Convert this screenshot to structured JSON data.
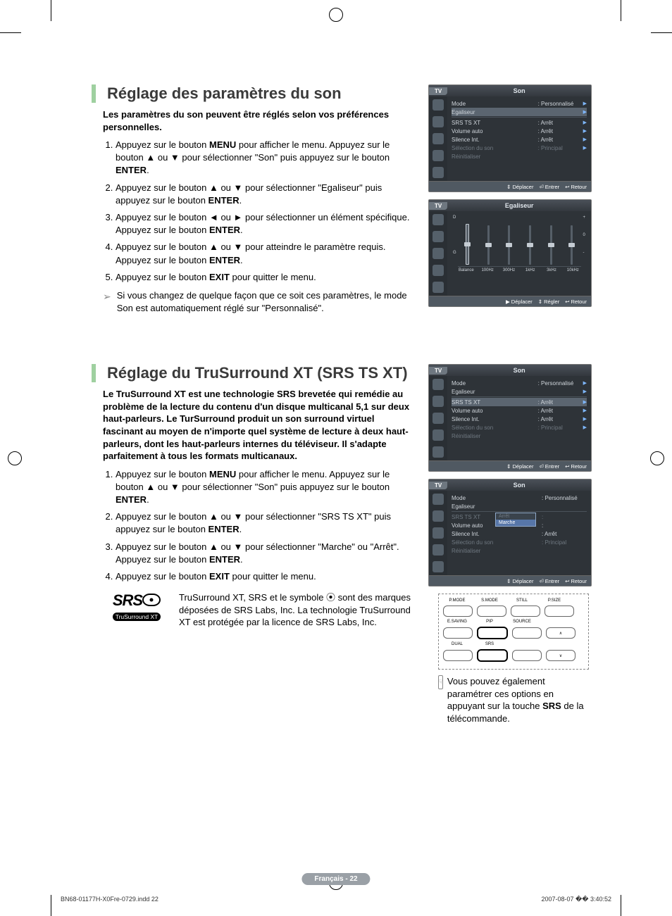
{
  "section1": {
    "title": "Réglage des paramètres du son",
    "intro": "Les paramètres du son peuvent être réglés selon vos préférences personnelles.",
    "steps": [
      "Appuyez sur le bouton <b>MENU</b> pour afficher le menu. Appuyez sur le bouton ▲ ou ▼ pour sélectionner \"Son\" puis appuyez sur le bouton <b>ENTER</b>.",
      "Appuyez sur le bouton ▲ ou ▼ pour sélectionner \"Egaliseur\" puis appuyez sur le bouton <b>ENTER</b>.",
      "Appuyez sur le bouton ◄ ou ► pour sélectionner un élément spécifique. Appuyez sur le bouton <b>ENTER</b>.",
      "Appuyez sur le bouton ▲ ou ▼ pour atteindre le paramètre requis. Appuyez sur le bouton <b>ENTER</b>.",
      "Appuyez sur le bouton <b>EXIT</b> pour quitter le menu."
    ],
    "note": "Si vous changez de quelque façon que ce soit ces paramètres, le mode Son est automatiquement réglé sur \"Personnalisé\"."
  },
  "section2": {
    "title": "Réglage du TruSurround XT (SRS TS XT)",
    "intro": "Le TruSurround XT est une technologie SRS brevetée qui remédie au problème de la lecture du contenu d'un disque multicanal 5,1 sur deux haut-parleurs. Le TurSurround produit un son surround virtuel fascinant au moyen de n'importe quel système de lecture à deux haut-parleurs, dont les haut-parleurs internes du téléviseur. Il s'adapte parfaitement à tous les formats multicanaux.",
    "steps": [
      "Appuyez sur le bouton <b>MENU</b> pour afficher le menu. Appuyez sur le bouton ▲ ou ▼ pour sélectionner \"Son\" puis appuyez sur le bouton <b>ENTER</b>.",
      "Appuyez sur le bouton ▲ ou ▼ pour sélectionner \"SRS TS XT\" puis appuyez sur le bouton <b>ENTER</b>.",
      "Appuyez sur le bouton ▲ ou ▼ pour sélectionner \"Marche\" ou \"Arrêt\". Appuyez sur le bouton <b>ENTER</b>.",
      "Appuyez sur le bouton <b>EXIT</b> pour quitter le menu."
    ],
    "srs_logo_main": "SRS",
    "srs_logo_sub": "TruSurround XT",
    "srs_text": "TruSurround XT, SRS et le symbole ⦿ sont des marques déposées de SRS Labs, Inc. La technologie TruSurround XT est protégée par la licence de SRS Labs, Inc.",
    "remote_note": "Vous pouvez également paramétrer ces options en appuyant sur la touche <b>SRS</b> de la télécommande."
  },
  "osd_common": {
    "tv_label": "TV",
    "foot_move": "Déplacer",
    "foot_enter": "Entrer",
    "foot_adjust": "Régler",
    "foot_return": "Retour"
  },
  "osd_son": {
    "title": "Son",
    "rows": [
      {
        "lbl": "Mode",
        "val": ": Personnalisé",
        "hl": false,
        "dim": false,
        "tri": true
      },
      {
        "lbl": "Egaliseur",
        "val": "",
        "hl": true,
        "dim": false,
        "tri": true
      },
      {
        "lbl": "SRS TS XT",
        "val": ": Arrêt",
        "hl": false,
        "dim": false,
        "tri": true,
        "hr_above": true
      },
      {
        "lbl": "Volume auto",
        "val": ": Arrêt",
        "hl": false,
        "dim": false,
        "tri": true
      },
      {
        "lbl": "Silence Int.",
        "val": ": Arrêt",
        "hl": false,
        "dim": false,
        "tri": true
      },
      {
        "lbl": "Sélection du son",
        "val": ": Principal",
        "hl": false,
        "dim": true,
        "tri": true
      },
      {
        "lbl": "Réinitialiser",
        "val": "",
        "hl": false,
        "dim": true,
        "tri": false
      }
    ]
  },
  "osd_eq": {
    "title": "Egaliseur",
    "side_top": "D",
    "side_bot": "G",
    "scale_top": "+",
    "scale_mid": "0",
    "scale_bot": "-",
    "bands": [
      "Balance",
      "100Hz",
      "300Hz",
      "1kHz",
      "3kHz",
      "10kHz"
    ],
    "handle_positions": [
      0.5,
      0.5,
      0.5,
      0.5,
      0.5,
      0.5
    ]
  },
  "osd_son2": {
    "title": "Son",
    "rows": [
      {
        "lbl": "Mode",
        "val": ": Personnalisé",
        "hl": false,
        "dim": false,
        "tri": true
      },
      {
        "lbl": "Egaliseur",
        "val": "",
        "hl": false,
        "dim": false,
        "tri": true
      },
      {
        "lbl": "SRS TS XT",
        "val": ": Arrêt",
        "hl": true,
        "dim": false,
        "tri": true,
        "hr_above": true
      },
      {
        "lbl": "Volume auto",
        "val": ": Arrêt",
        "hl": false,
        "dim": false,
        "tri": true
      },
      {
        "lbl": "Silence Int.",
        "val": ": Arrêt",
        "hl": false,
        "dim": false,
        "tri": true
      },
      {
        "lbl": "Sélection du son",
        "val": ": Principal",
        "hl": false,
        "dim": true,
        "tri": true
      },
      {
        "lbl": "Réinitialiser",
        "val": "",
        "hl": false,
        "dim": true,
        "tri": false
      }
    ]
  },
  "osd_son3": {
    "title": "Son",
    "dropdown": {
      "options": [
        "Arrêt",
        "Marche"
      ],
      "selected": 1
    },
    "rows": [
      {
        "lbl": "Mode",
        "val": ": Personnalisé",
        "hl": false,
        "dim": false,
        "tri": false
      },
      {
        "lbl": "Egaliseur",
        "val": "",
        "hl": false,
        "dim": false,
        "tri": false
      },
      {
        "lbl": "SRS TS XT",
        "val": ":",
        "hl": false,
        "dim": true,
        "tri": false,
        "hr_above": true,
        "dropdown": true
      },
      {
        "lbl": "Volume auto",
        "val": ":",
        "hl": false,
        "dim": false,
        "tri": false
      },
      {
        "lbl": "Silence Int.",
        "val": ": Arrêt",
        "hl": false,
        "dim": false,
        "tri": false
      },
      {
        "lbl": "Sélection du son",
        "val": ": Principal",
        "hl": false,
        "dim": true,
        "tri": false
      },
      {
        "lbl": "Réinitialiser",
        "val": "",
        "hl": false,
        "dim": true,
        "tri": false
      }
    ]
  },
  "remote": {
    "r1": [
      "P.MODE",
      "S.MODE",
      "STILL",
      "P.SIZE"
    ],
    "r2": [
      "E.SAVING",
      "PIP",
      "SOURCE",
      ""
    ],
    "r3": [
      "DUAL",
      "SRS",
      "",
      ""
    ]
  },
  "page_label": "Français - 22",
  "doc_file": "BN68-01177H-X0Fre-0729.indd   22",
  "doc_stamp": "2007-08-07   �� 3:40:52",
  "colors": {
    "accent": "#9fd0a0",
    "osd_bg": "#2e3338",
    "osd_hl": "#5b6570",
    "osd_dim": "#6f7880",
    "osd_foot": "#505962"
  }
}
